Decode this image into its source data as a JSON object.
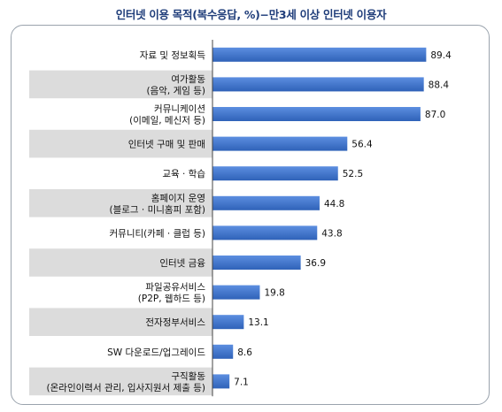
{
  "chart_data": {
    "type": "bar",
    "orientation": "horizontal",
    "title": "인터넷 이용 목적(복수응답, %)−만3세 이상 인터넷 이용자",
    "categories": [
      [
        "자료 및 정보획득"
      ],
      [
        "여가활동",
        "(음악, 게임 등)"
      ],
      [
        "커뮤니케이션",
        "(이메일, 메신저 등)"
      ],
      [
        "인터넷 구매 및 판매"
      ],
      [
        "교육 · 학습"
      ],
      [
        "홈페이지 운영",
        "(블로그 · 미니홈피 포함)"
      ],
      [
        "커뮤니티(카페 · 클럽 등)"
      ],
      [
        "인터넷 금융"
      ],
      [
        "파일공유서비스",
        "(P2P, 웹하드 등)"
      ],
      [
        "전자정부서비스"
      ],
      [
        "SW 다운로드/업그레이드"
      ],
      [
        "구직활동",
        "(온라인이력서 관리, 입사지원서 제출 등)"
      ]
    ],
    "values": [
      89.4,
      88.4,
      87.0,
      56.4,
      52.5,
      44.8,
      43.8,
      36.9,
      19.8,
      13.1,
      8.6,
      7.1
    ],
    "value_labels": [
      "89.4",
      "88.4",
      "87.0",
      "56.4",
      "52.5",
      "44.8",
      "43.8",
      "36.9",
      "19.8",
      "13.1",
      "8.6",
      "7.1"
    ],
    "xlim": [
      0,
      100
    ],
    "shaded_rows": [
      1,
      3,
      5,
      7,
      9,
      11
    ],
    "bar_color": "#2f62b8",
    "bar_color_light": "#5c8ee0",
    "band_color": "#dcdcdc",
    "grid": false,
    "legend": "none"
  }
}
